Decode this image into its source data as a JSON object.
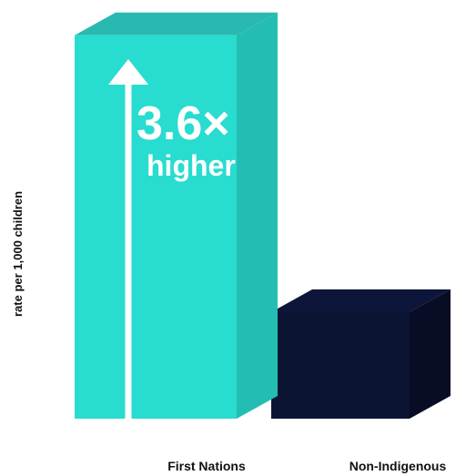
{
  "chart_data": {
    "type": "bar",
    "categories": [
      "First Nations",
      "Non-Indigenous"
    ],
    "values": [
      3.6,
      1
    ],
    "ylabel": "rate per 1,000 children",
    "annotation": {
      "value": "3.6×",
      "text": "higher"
    },
    "colors": {
      "first_nations": {
        "front": "#28dcd0",
        "side": "#24bdb3",
        "top": "#2ab9b0"
      },
      "non_indigenous": {
        "front": "#0c1433",
        "side": "#080d25",
        "top": "#0d163a"
      },
      "arrow": "#ffffff",
      "text": "#111111"
    },
    "grid": false,
    "legend": "none"
  }
}
